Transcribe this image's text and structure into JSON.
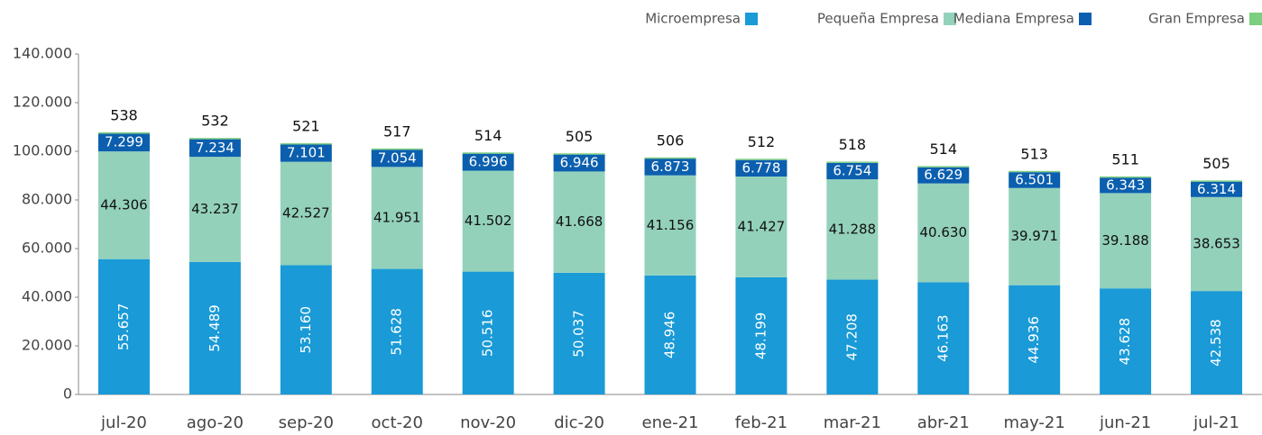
{
  "chart_data": {
    "type": "bar",
    "stacked": true,
    "categories": [
      "jul-20",
      "ago-20",
      "sep-20",
      "oct-20",
      "nov-20",
      "dic-20",
      "ene-21",
      "feb-21",
      "mar-21",
      "abr-21",
      "may-21",
      "jun-21",
      "jul-21"
    ],
    "series": [
      {
        "name": "Microempresa",
        "color": "#1a9ad6",
        "values": [
          55657,
          54489,
          53160,
          51628,
          50516,
          50037,
          48946,
          48199,
          47208,
          46163,
          44936,
          43628,
          42538
        ],
        "value_labels": [
          "55.657",
          "54.489",
          "53.160",
          "51.628",
          "50.516",
          "50.037",
          "48.946",
          "48.199",
          "47.208",
          "46.163",
          "44.936",
          "43.628",
          "42.538"
        ]
      },
      {
        "name": "Pequeña Empresa",
        "color": "#93d1bb",
        "values": [
          44306,
          43237,
          42527,
          41951,
          41502,
          41668,
          41156,
          41427,
          41288,
          40630,
          39971,
          39188,
          38653
        ],
        "value_labels": [
          "44.306",
          "43.237",
          "42.527",
          "41.951",
          "41.502",
          "41.668",
          "41.156",
          "41.427",
          "41.288",
          "40.630",
          "39.971",
          "39.188",
          "38.653"
        ]
      },
      {
        "name": "Mediana Empresa",
        "color": "#0b5fae",
        "values": [
          7299,
          7234,
          7101,
          7054,
          6996,
          6946,
          6873,
          6778,
          6754,
          6629,
          6501,
          6343,
          6314
        ],
        "value_labels": [
          "7.299",
          "7.234",
          "7.101",
          "7.054",
          "6.996",
          "6.946",
          "6.873",
          "6.778",
          "6.754",
          "6.629",
          "6.501",
          "6.343",
          "6.314"
        ]
      },
      {
        "name": "Gran Empresa",
        "color": "#7ccf7e",
        "values": [
          538,
          532,
          521,
          517,
          514,
          505,
          506,
          512,
          518,
          514,
          513,
          511,
          505
        ]
      }
    ],
    "ylim": [
      0,
      140000
    ],
    "yticks": [
      0,
      {
        "value": 20000,
        "label": "20.000"
      },
      {
        "value": 40000,
        "label": "40.000"
      },
      {
        "value": 60000,
        "label": "60.000"
      },
      {
        "value": 80000,
        "label": "80.000"
      },
      {
        "value": 100000,
        "label": "100.000"
      },
      {
        "value": 120000,
        "label": "120.000"
      },
      {
        "value": 140000,
        "label": "140.000"
      }
    ],
    "legend": "top-right"
  }
}
